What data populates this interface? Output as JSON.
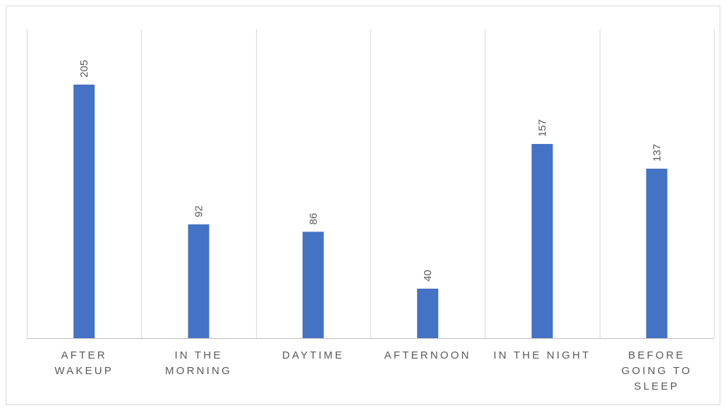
{
  "chart_data": {
    "type": "bar",
    "title": "",
    "xlabel": "",
    "ylabel": "",
    "categories": [
      "AFTER WAKEUP",
      "IN THE MORNING",
      "DAYTIME",
      "AFTERNOON",
      "IN THE NIGHT",
      "BEFORE GOING TO SLEEP"
    ],
    "category_lines": [
      [
        "AFTER",
        "WAKEUP"
      ],
      [
        "IN THE",
        "MORNING"
      ],
      [
        "DAYTIME"
      ],
      [
        "AFTERNOON"
      ],
      [
        "IN THE NIGHT"
      ],
      [
        "BEFORE",
        "GOING TO",
        "SLEEP"
      ]
    ],
    "values": [
      205,
      92,
      86,
      40,
      157,
      137
    ],
    "data_labels": [
      "205",
      "92",
      "86",
      "40",
      "157",
      "137"
    ],
    "ylim": [
      0,
      250
    ],
    "grid": "vertical category separators",
    "legend": "none",
    "bar_color": "#4472C4",
    "grid_color": "#D9D9D9",
    "text_color": "#595959"
  }
}
